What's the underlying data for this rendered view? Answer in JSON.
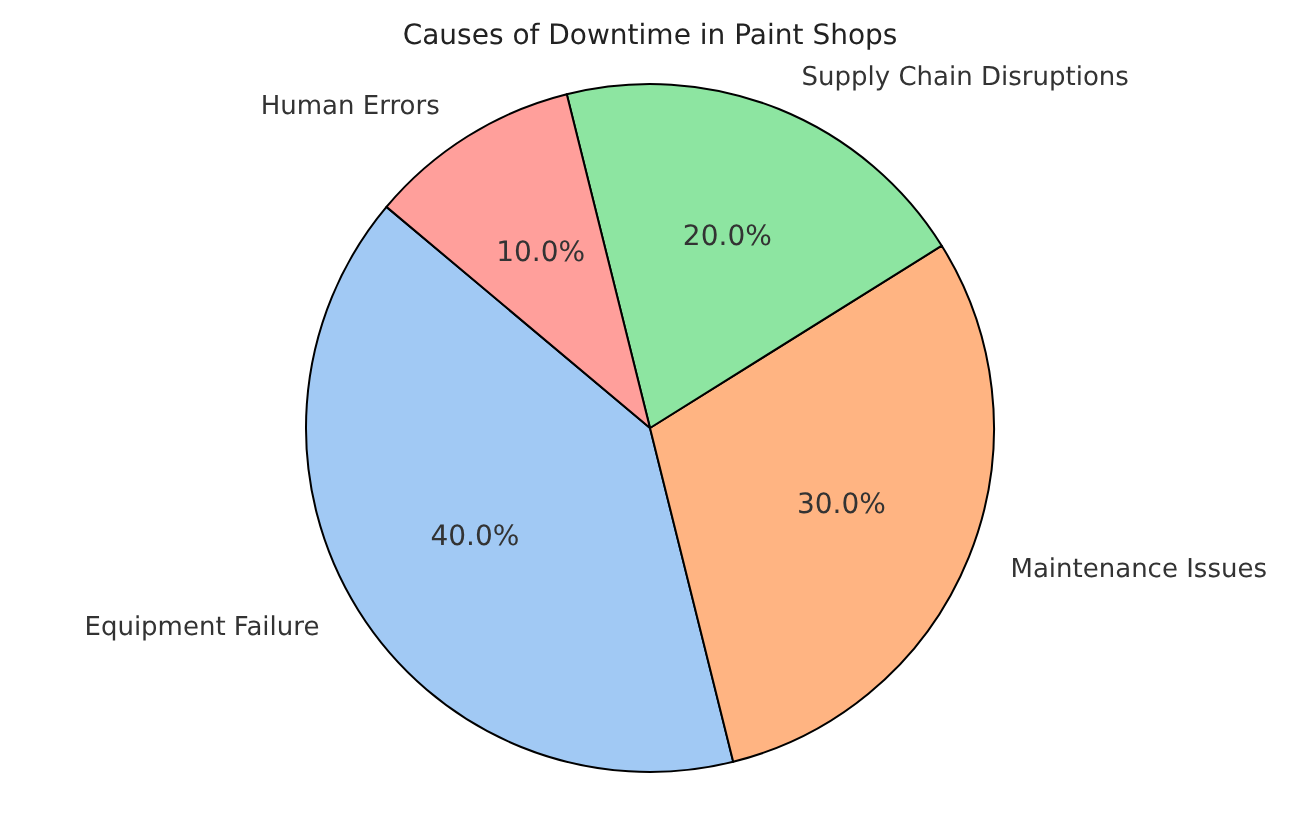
{
  "chart_data": {
    "type": "pie",
    "title": "Causes of Downtime in Paint Shops",
    "categories": [
      "Equipment Failure",
      "Maintenance Issues",
      "Supply Chain Disruptions",
      "Human Errors"
    ],
    "values": [
      40,
      30,
      20,
      10
    ],
    "value_labels": [
      "40.0%",
      "30.0%",
      "20.0%",
      "10.0%"
    ],
    "colors": [
      "#a1c9f4",
      "#ffb482",
      "#8de5a1",
      "#ff9f9b"
    ],
    "legend": false
  }
}
